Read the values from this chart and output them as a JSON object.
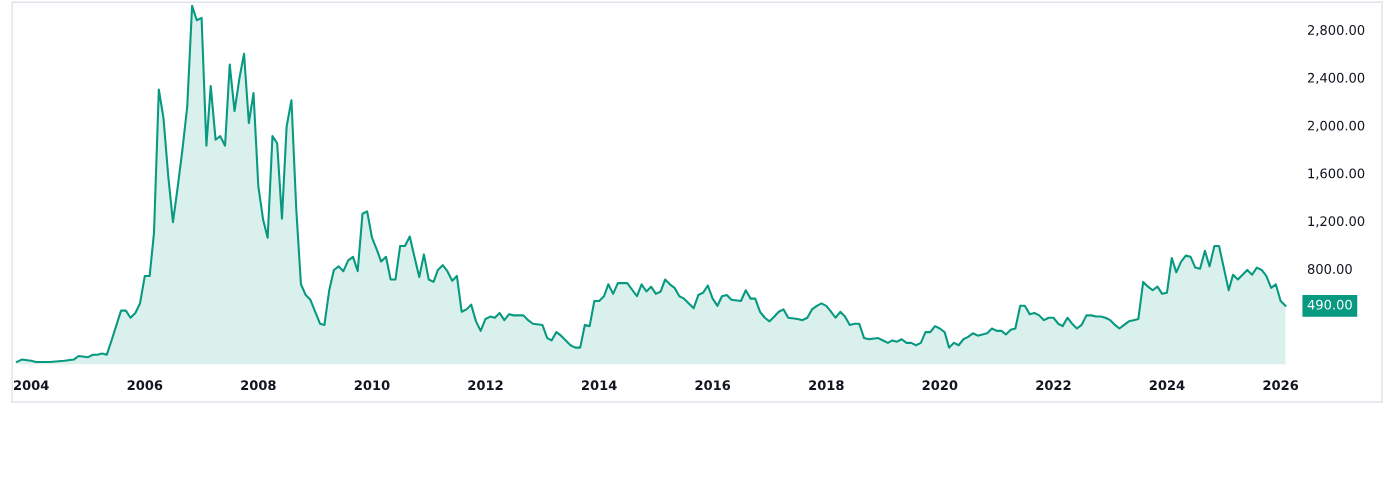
{
  "chart_data": {
    "type": "area",
    "color": "#089981",
    "x": [
      "2003-10",
      "2003-11",
      "2004-01",
      "2004-02",
      "2004-05",
      "2004-08",
      "2004-10",
      "2004-11",
      "2005-01",
      "2005-02",
      "2005-03",
      "2005-04",
      "2005-05",
      "2005-06",
      "2005-08",
      "2005-09",
      "2005-10",
      "2005-11",
      "2005-12",
      "2006-01",
      "2006-02",
      "2006-03",
      "2006-04",
      "2006-05",
      "2006-06",
      "2006-07",
      "2006-08",
      "2006-09",
      "2006-10",
      "2006-11",
      "2006-12",
      "2007-01",
      "2007-02",
      "2007-03",
      "2007-04",
      "2007-05",
      "2007-06",
      "2007-07",
      "2007-08",
      "2007-09",
      "2007-10",
      "2007-11",
      "2007-12",
      "2008-01",
      "2008-02",
      "2008-03",
      "2008-04",
      "2008-05",
      "2008-06",
      "2008-07",
      "2008-08",
      "2008-09",
      "2008-10",
      "2008-11",
      "2008-12",
      "2009-01",
      "2009-02",
      "2009-03",
      "2009-04",
      "2009-05",
      "2009-06",
      "2009-07",
      "2009-08",
      "2009-09",
      "2009-10",
      "2009-11",
      "2009-12",
      "2010-01",
      "2010-02",
      "2010-03",
      "2010-04",
      "2010-05",
      "2010-06",
      "2010-07",
      "2010-08",
      "2010-09",
      "2010-10",
      "2010-11",
      "2010-12",
      "2011-01",
      "2011-02",
      "2011-03",
      "2011-04",
      "2011-05",
      "2011-06",
      "2011-07",
      "2011-08",
      "2011-09",
      "2011-10",
      "2011-11",
      "2011-12",
      "2012-01",
      "2012-02",
      "2012-03",
      "2012-04",
      "2012-05",
      "2012-06",
      "2012-07",
      "2012-09",
      "2012-10",
      "2012-11",
      "2013-01",
      "2013-02",
      "2013-03",
      "2013-04",
      "2013-05",
      "2013-07",
      "2013-08",
      "2013-09",
      "2013-10",
      "2013-11",
      "2013-12",
      "2014-01",
      "2014-02",
      "2014-03",
      "2014-04",
      "2014-05",
      "2014-07",
      "2014-09",
      "2014-10",
      "2014-11",
      "2014-12",
      "2015-01",
      "2015-02",
      "2015-03",
      "2015-04",
      "2015-05",
      "2015-06",
      "2015-07",
      "2015-09",
      "2015-10",
      "2015-11",
      "2015-12",
      "2016-01",
      "2016-02",
      "2016-03",
      "2016-04",
      "2016-05",
      "2016-07",
      "2016-08",
      "2016-09",
      "2016-10",
      "2016-11",
      "2016-12",
      "2017-01",
      "2017-02",
      "2017-03",
      "2017-04",
      "2017-05",
      "2017-07",
      "2017-08",
      "2017-09",
      "2017-10",
      "2017-11",
      "2017-12",
      "2018-01",
      "2018-02",
      "2018-03",
      "2018-04",
      "2018-05",
      "2018-06",
      "2018-07",
      "2018-08",
      "2018-09",
      "2018-10",
      "2018-12",
      "2019-01",
      "2019-02",
      "2019-03",
      "2019-04",
      "2019-05",
      "2019-06",
      "2019-07",
      "2019-08",
      "2019-09",
      "2019-10",
      "2019-11",
      "2019-12",
      "2020-01",
      "2020-02",
      "2020-03",
      "2020-04",
      "2020-05",
      "2020-06",
      "2020-07",
      "2020-08",
      "2020-09",
      "2020-10",
      "2020-11",
      "2020-12",
      "2021-01",
      "2021-02",
      "2021-03",
      "2021-04",
      "2021-05",
      "2021-06",
      "2021-07",
      "2021-08",
      "2021-09",
      "2021-10",
      "2021-11",
      "2021-12",
      "2022-01",
      "2022-02",
      "2022-03",
      "2022-04",
      "2022-05",
      "2022-06",
      "2022-07",
      "2022-08",
      "2022-09",
      "2022-10",
      "2022-11",
      "2022-12",
      "2023-01",
      "2023-02",
      "2023-03",
      "2023-04",
      "2023-05",
      "2023-06",
      "2023-07",
      "2023-08",
      "2023-09",
      "2023-10",
      "2023-11",
      "2023-12",
      "2024-01",
      "2024-02",
      "2024-03",
      "2024-04",
      "2024-05",
      "2024-06",
      "2024-07",
      "2024-08",
      "2024-09",
      "2024-10",
      "2024-11",
      "2024-12",
      "2025-02",
      "2025-03",
      "2025-04",
      "2025-05",
      "2025-06",
      "2025-07",
      "2025-08",
      "2025-09",
      "2025-10",
      "2025-11",
      "2025-12",
      "2026-01",
      "2026-02"
    ],
    "values": [
      20,
      40,
      30,
      20,
      20,
      30,
      40,
      70,
      60,
      80,
      80,
      90,
      80,
      200,
      450,
      450,
      390,
      430,
      510,
      740,
      740,
      1100,
      2300,
      2060,
      1570,
      1190,
      1490,
      1810,
      2160,
      3000,
      2880,
      2900,
      1830,
      2330,
      1880,
      1910,
      1830,
      2510,
      2120,
      2390,
      2600,
      2020,
      2270,
      1490,
      1210,
      1060,
      1910,
      1850,
      1220,
      1990,
      2210,
      1300,
      670,
      580,
      540,
      440,
      340,
      330,
      620,
      790,
      820,
      780,
      870,
      900,
      780,
      1260,
      1280,
      1060,
      960,
      860,
      900,
      710,
      710,
      990,
      990,
      1070,
      900,
      730,
      920,
      710,
      690,
      790,
      830,
      780,
      700,
      740,
      440,
      460,
      500,
      360,
      280,
      380,
      400,
      390,
      430,
      370,
      420,
      410,
      410,
      370,
      340,
      330,
      220,
      200,
      270,
      240,
      160,
      140,
      140,
      330,
      320,
      530,
      530,
      570,
      670,
      590,
      680,
      680,
      570,
      670,
      610,
      650,
      590,
      610,
      710,
      670,
      640,
      570,
      550,
      470,
      580,
      600,
      660,
      550,
      490,
      570,
      580,
      540,
      530,
      620,
      550,
      550,
      440,
      390,
      360,
      400,
      440,
      460,
      390,
      380,
      370,
      390,
      460,
      490,
      510,
      490,
      440,
      390,
      440,
      400,
      330,
      340,
      340,
      220,
      210,
      220,
      200,
      180,
      200,
      190,
      210,
      180,
      180,
      160,
      180,
      270,
      270,
      320,
      300,
      270,
      140,
      180,
      160,
      210,
      230,
      260,
      240,
      250,
      260,
      300,
      280,
      280,
      250,
      290,
      300,
      490,
      490,
      420,
      430,
      410,
      370,
      390,
      390,
      340,
      320,
      390,
      340,
      300,
      330,
      410,
      410,
      400,
      400,
      390,
      370,
      330,
      300,
      330,
      360,
      370,
      380,
      690,
      650,
      620,
      650,
      590,
      600,
      890,
      770,
      860,
      910,
      900,
      810,
      800,
      950,
      820,
      990,
      990,
      620,
      750,
      710,
      750,
      790,
      750,
      810,
      790,
      740,
      640,
      670,
      530,
      490
    ],
    "xlim": [
      "2003-09",
      "2027-10-15"
    ],
    "xticks": [
      "2004",
      "2006",
      "2008",
      "2010",
      "2012",
      "2014",
      "2016",
      "2018",
      "2020",
      "2022",
      "2024",
      "2026"
    ],
    "ylim": [
      -315,
      3030
    ],
    "yticks": [
      {
        "value": 800,
        "label": "800.00"
      },
      {
        "value": 1200,
        "label": "1,200.00"
      },
      {
        "value": 1600,
        "label": "1,600.00"
      },
      {
        "value": 2000,
        "label": "2,000.00"
      },
      {
        "value": 2400,
        "label": "2,400.00"
      },
      {
        "value": 2800,
        "label": "2,800.00"
      }
    ],
    "annotations": [
      "490.00"
    ]
  }
}
